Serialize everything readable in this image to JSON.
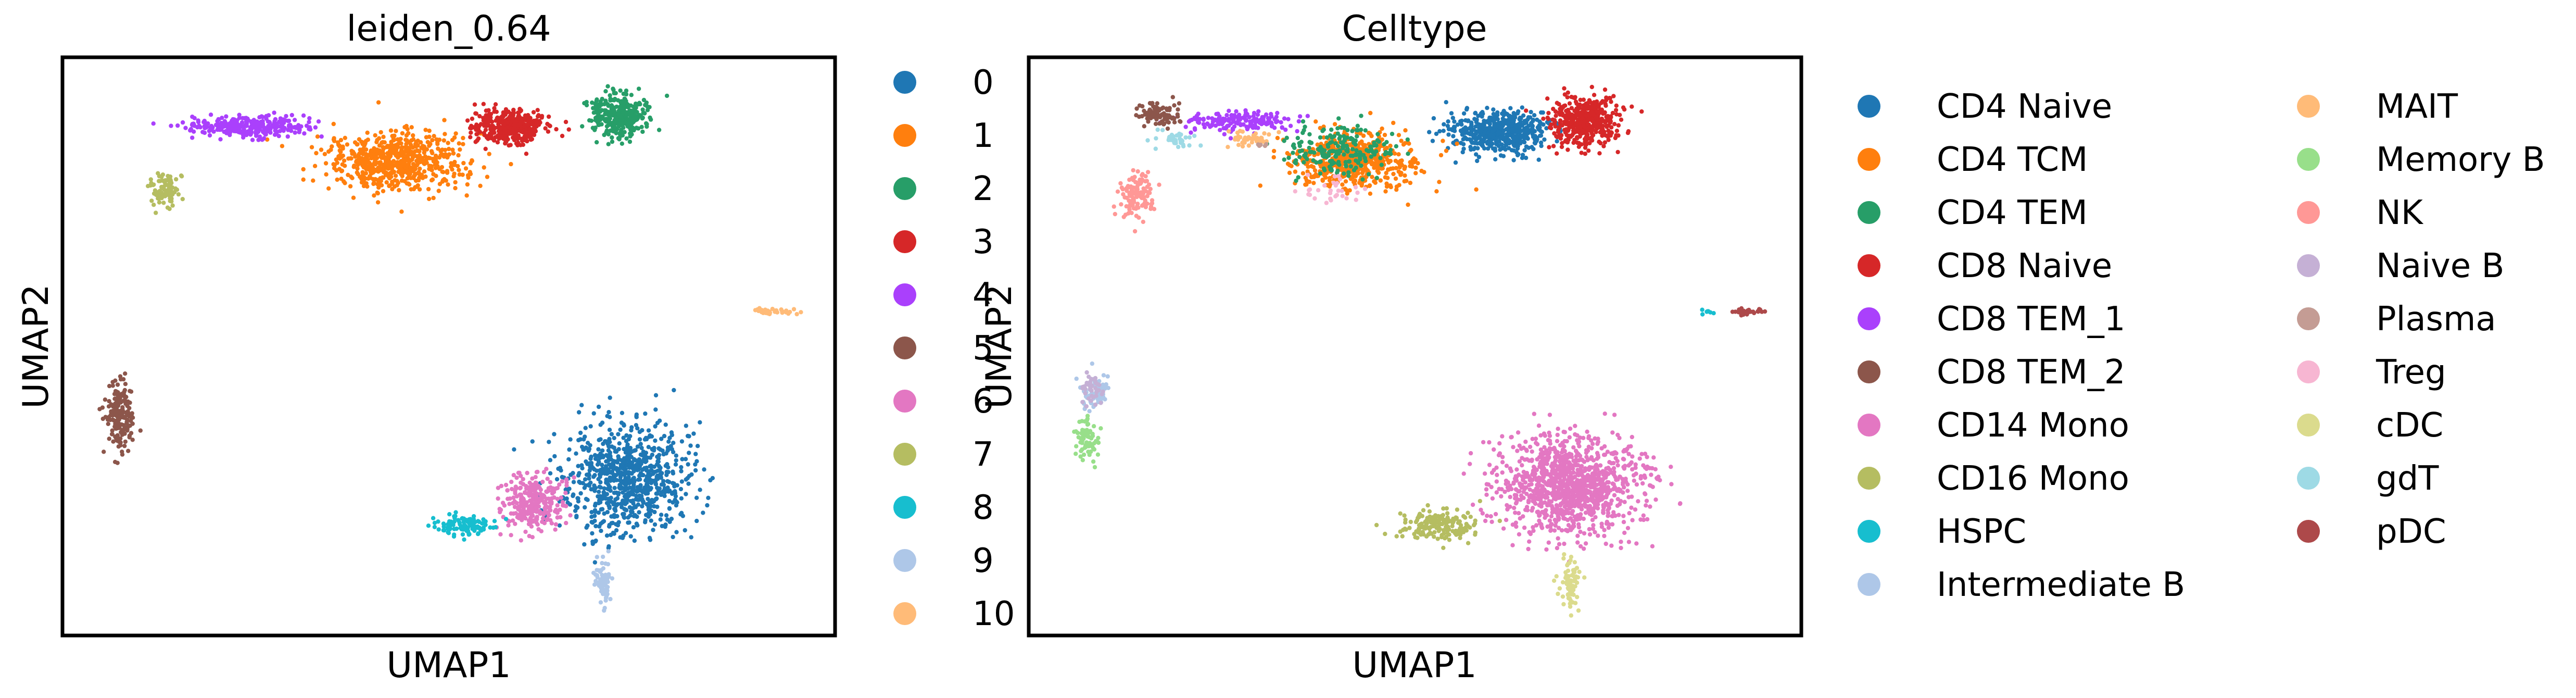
{
  "figure": {
    "panels": [
      {
        "title": "leiden_0.64",
        "legend_title": "",
        "legend_entries": [
          {
            "label": "0",
            "color": "#1f77b4"
          },
          {
            "label": "1",
            "color": "#ff7f0e"
          },
          {
            "label": "2",
            "color": "#279e68"
          },
          {
            "label": "3",
            "color": "#d62728"
          },
          {
            "label": "4",
            "color": "#aa40fc"
          },
          {
            "label": "5",
            "color": "#8c564b"
          },
          {
            "label": "6",
            "color": "#e377c2"
          },
          {
            "label": "7",
            "color": "#b5bd61"
          },
          {
            "label": "8",
            "color": "#17becf"
          },
          {
            "label": "9",
            "color": "#aec7e8"
          },
          {
            "label": "10",
            "color": "#ffbb78"
          }
        ]
      },
      {
        "title": "Celltype",
        "legend_title": "",
        "legend_entries": [
          {
            "label": "CD4 Naive",
            "color": "#1f77b4"
          },
          {
            "label": "CD4 TCM",
            "color": "#ff7f0e"
          },
          {
            "label": "CD4 TEM",
            "color": "#279e68"
          },
          {
            "label": "CD8 Naive",
            "color": "#d62728"
          },
          {
            "label": "CD8 TEM_1",
            "color": "#aa40fc"
          },
          {
            "label": "CD8 TEM_2",
            "color": "#8c564b"
          },
          {
            "label": "CD14 Mono",
            "color": "#e377c2"
          },
          {
            "label": "CD16 Mono",
            "color": "#b5bd61"
          },
          {
            "label": "HSPC",
            "color": "#17becf"
          },
          {
            "label": "Intermediate B",
            "color": "#aec7e8"
          },
          {
            "label": "MAIT",
            "color": "#ffbb78"
          },
          {
            "label": "Memory B",
            "color": "#98df8a"
          },
          {
            "label": "NK",
            "color": "#ff9896"
          },
          {
            "label": "Naive B",
            "color": "#c5b0d5"
          },
          {
            "label": "Plasma",
            "color": "#c49c94"
          },
          {
            "label": "Treg",
            "color": "#f7b6d2"
          },
          {
            "label": "cDC",
            "color": "#dbdb8d"
          },
          {
            "label": "gdT",
            "color": "#9edae5"
          },
          {
            "label": "pDC",
            "color": "#ad494a"
          }
        ]
      }
    ]
  },
  "chart_data": [
    {
      "type": "scatter",
      "title": "leiden_0.64",
      "xlabel": "UMAP1",
      "ylabel": "UMAP2",
      "xlim": [
        0,
        100
      ],
      "ylim": [
        0,
        100
      ],
      "ticks": "none",
      "grid": false,
      "legend_position": "right",
      "clusters": [
        {
          "label": "0",
          "color": "#1f77b4",
          "center": [
            73,
            27
          ],
          "spread": [
            6.0,
            7.0
          ],
          "n": 800
        },
        {
          "label": "1",
          "color": "#ff7f0e",
          "center": [
            43,
            82
          ],
          "spread": [
            6.0,
            3.5
          ],
          "n": 650
        },
        {
          "label": "2",
          "color": "#279e68",
          "center": [
            72,
            90
          ],
          "spread": [
            2.6,
            2.8
          ],
          "n": 330
        },
        {
          "label": "3",
          "color": "#d62728",
          "center": [
            58,
            88
          ],
          "spread": [
            3.3,
            2.2
          ],
          "n": 380
        },
        {
          "label": "4",
          "color": "#aa40fc",
          "center": [
            24,
            88
          ],
          "spread": [
            5.5,
            1.3
          ],
          "n": 300
        },
        {
          "label": "5",
          "color": "#8c564b",
          "center": [
            7.5,
            38
          ],
          "spread": [
            1.3,
            4.5
          ],
          "n": 180
        },
        {
          "label": "6",
          "color": "#e377c2",
          "center": [
            61,
            23
          ],
          "spread": [
            3.0,
            3.5
          ],
          "n": 280
        },
        {
          "label": "7",
          "color": "#b5bd61",
          "center": [
            13,
            77
          ],
          "spread": [
            1.3,
            2.2
          ],
          "n": 90
        },
        {
          "label": "8",
          "color": "#17becf",
          "center": [
            52,
            19
          ],
          "spread": [
            3.0,
            1.2
          ],
          "n": 110
        },
        {
          "label": "9",
          "color": "#aec7e8",
          "center": [
            70,
            9
          ],
          "spread": [
            0.9,
            3.0
          ],
          "n": 70
        },
        {
          "label": "10",
          "color": "#ffbb78",
          "center": [
            92,
            56
          ],
          "spread": [
            2.0,
            0.45
          ],
          "n": 35
        }
      ]
    },
    {
      "type": "scatter",
      "title": "Celltype",
      "xlabel": "UMAP1",
      "ylabel": "UMAP2",
      "xlim": [
        0,
        100
      ],
      "ylim": [
        0,
        100
      ],
      "ticks": "none",
      "grid": false,
      "legend_position": "right",
      "clusters": [
        {
          "label": "CD4 Naive",
          "color": "#1f77b4",
          "center": [
            61,
            87
          ],
          "spread": [
            4.5,
            2.6
          ],
          "n": 520
        },
        {
          "label": "CD4 TCM",
          "color": "#ff7f0e",
          "center": [
            42,
            82
          ],
          "spread": [
            6.0,
            3.5
          ],
          "n": 560
        },
        {
          "label": "CD4 TEM",
          "color": "#279e68",
          "center": [
            40,
            84
          ],
          "spread": [
            5.0,
            3.0
          ],
          "n": 200
        },
        {
          "label": "CD8 Naive",
          "color": "#d62728",
          "center": [
            72,
            89
          ],
          "spread": [
            3.0,
            3.0
          ],
          "n": 420
        },
        {
          "label": "CD8 TEM_1",
          "color": "#aa40fc",
          "center": [
            27,
            89
          ],
          "spread": [
            5.0,
            1.2
          ],
          "n": 160
        },
        {
          "label": "CD8 TEM_2",
          "color": "#8c564b",
          "center": [
            17,
            90
          ],
          "spread": [
            2.0,
            1.3
          ],
          "n": 90
        },
        {
          "label": "CD14 Mono",
          "color": "#e377c2",
          "center": [
            70,
            26
          ],
          "spread": [
            6.5,
            6.0
          ],
          "n": 1150
        },
        {
          "label": "CD16 Mono",
          "color": "#b5bd61",
          "center": [
            53,
            19
          ],
          "spread": [
            3.5,
            1.8
          ],
          "n": 160
        },
        {
          "label": "HSPC",
          "color": "#17becf",
          "center": [
            88,
            56
          ],
          "spread": [
            0.6,
            0.4
          ],
          "n": 8
        },
        {
          "label": "Intermediate B",
          "color": "#aec7e8",
          "center": [
            8.5,
            42
          ],
          "spread": [
            1.3,
            2.5
          ],
          "n": 80
        },
        {
          "label": "MAIT",
          "color": "#ffbb78",
          "center": [
            29,
            86
          ],
          "spread": [
            2.0,
            1.0
          ],
          "n": 40
        },
        {
          "label": "Memory B",
          "color": "#98df8a",
          "center": [
            7.5,
            34
          ],
          "spread": [
            1.1,
            2.5
          ],
          "n": 70
        },
        {
          "label": "NK",
          "color": "#ff9896",
          "center": [
            14,
            76
          ],
          "spread": [
            1.6,
            2.6
          ],
          "n": 120
        },
        {
          "label": "Naive B",
          "color": "#c5b0d5",
          "center": [
            8.0,
            43
          ],
          "spread": [
            1.0,
            2.0
          ],
          "n": 40
        },
        {
          "label": "Plasma",
          "color": "#c49c94",
          "center": [
            30,
            85
          ],
          "spread": [
            0.5,
            0.4
          ],
          "n": 5
        },
        {
          "label": "Treg",
          "color": "#f7b6d2",
          "center": [
            39,
            77
          ],
          "spread": [
            3.0,
            1.5
          ],
          "n": 30
        },
        {
          "label": "cDC",
          "color": "#dbdb8d",
          "center": [
            70,
            9
          ],
          "spread": [
            0.9,
            3.0
          ],
          "n": 70
        },
        {
          "label": "gdT",
          "color": "#9edae5",
          "center": [
            19,
            86
          ],
          "spread": [
            1.5,
            1.2
          ],
          "n": 40
        },
        {
          "label": "pDC",
          "color": "#ad494a",
          "center": [
            93,
            56
          ],
          "spread": [
            1.5,
            0.4
          ],
          "n": 30
        }
      ]
    }
  ]
}
